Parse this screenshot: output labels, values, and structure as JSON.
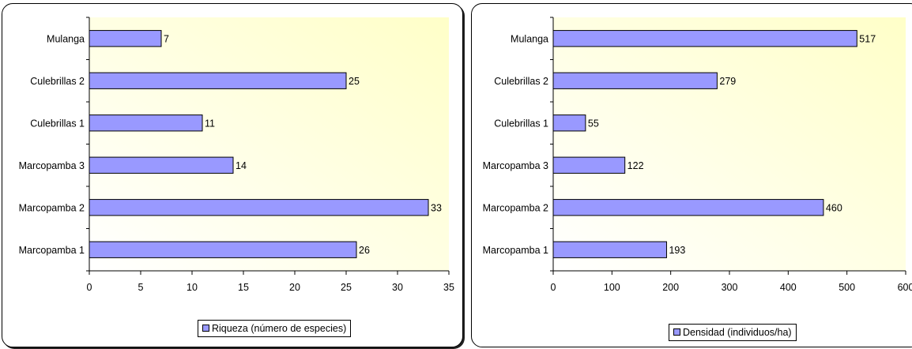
{
  "colors": {
    "bar_fill": "#9999ff",
    "plot_bg_light": "#ffffff",
    "plot_bg_dark": "#ffffc8"
  },
  "chart_data": [
    {
      "type": "bar",
      "orientation": "horizontal",
      "categories": [
        "Marcopamba 1",
        "Marcopamba 2",
        "Marcopamba 3",
        "Culebrillas 1",
        "Culebrillas 2",
        "Mulanga"
      ],
      "series": [
        {
          "name": "Riqueza (número de especies)",
          "values": [
            26,
            33,
            14,
            11,
            25,
            7
          ]
        }
      ],
      "xlim": [
        0,
        35
      ],
      "xticks": [
        "0",
        "5",
        "10",
        "15",
        "20",
        "25",
        "30",
        "35"
      ],
      "legend_position": "bottom",
      "grid": false
    },
    {
      "type": "bar",
      "orientation": "horizontal",
      "categories": [
        "Marcopamba 1",
        "Marcopamba 2",
        "Marcopamba 3",
        "Culebrillas 1",
        "Culebrillas 2",
        "Mulanga"
      ],
      "series": [
        {
          "name": "Densidad (individuos/ha)",
          "values": [
            193,
            460,
            122,
            55,
            279,
            517
          ]
        }
      ],
      "xlim": [
        0,
        600
      ],
      "xticks": [
        "0",
        "100",
        "200",
        "300",
        "400",
        "500",
        "600"
      ],
      "legend_position": "bottom",
      "grid": false
    }
  ]
}
